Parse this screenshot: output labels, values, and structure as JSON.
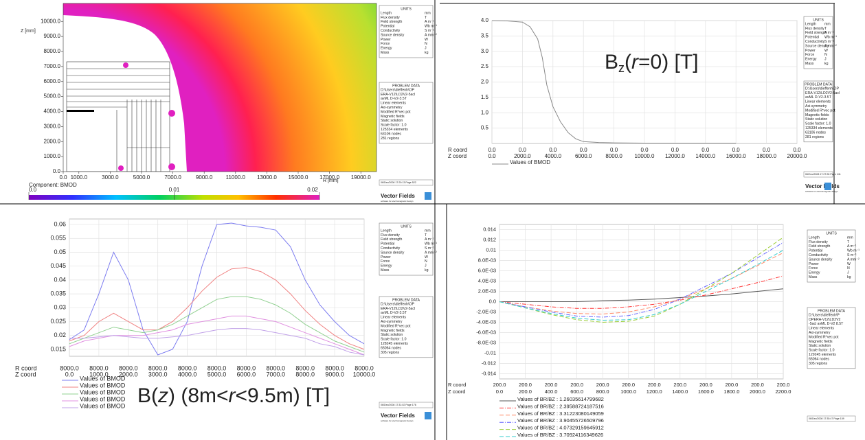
{
  "sidebar": {
    "units_title": "UNITS",
    "units": [
      [
        "Length",
        "mm"
      ],
      [
        "Flux density",
        "T"
      ],
      [
        "Field strength",
        "A m⁻¹"
      ],
      [
        "Potential",
        "Wb m⁻¹"
      ],
      [
        "Conductivity",
        "S m⁻¹"
      ],
      [
        "Source density",
        "A mm⁻²"
      ],
      [
        "Power",
        "W"
      ],
      [
        "Force",
        "N"
      ],
      [
        "Energy",
        "J"
      ],
      [
        "Mass",
        "kg"
      ]
    ],
    "problem_title": "PROBLEM DATA",
    "logo": "Vector Fields",
    "logo_tagline": "software for electromagnetic design"
  },
  "chart_data": [
    {
      "type": "contour",
      "x_label": "R [mm]",
      "y_label": "Z [mm]",
      "xlim": [
        0,
        20000
      ],
      "ylim": [
        0,
        11200
      ],
      "xticks": [
        {
          "value": 0,
          "label": "0.0"
        },
        {
          "value": 1000,
          "label": "1000.0"
        },
        {
          "value": 3000,
          "label": "3000.0"
        },
        {
          "value": 5000,
          "label": "5000.0"
        },
        {
          "value": 7000,
          "label": "7000.0"
        },
        {
          "value": 9000,
          "label": "9000.0"
        },
        {
          "value": 11000,
          "label": "11000.0"
        },
        {
          "value": 13000,
          "label": "13000.0"
        },
        {
          "value": 15000,
          "label": "15000.0"
        },
        {
          "value": 17000,
          "label": "17000.0"
        },
        {
          "value": 19000,
          "label": "19000.0"
        }
      ],
      "yticks": [
        {
          "value": 0,
          "label": "0.0"
        },
        {
          "value": 1000,
          "label": "1000.0"
        },
        {
          "value": 2000,
          "label": "2000.0"
        },
        {
          "value": 3000,
          "label": "3000.0"
        },
        {
          "value": 4000,
          "label": "4000.0"
        },
        {
          "value": 5000,
          "label": "5000.0"
        },
        {
          "value": 6000,
          "label": "6000.0"
        },
        {
          "value": 7000,
          "label": "7000.0"
        },
        {
          "value": 8000,
          "label": "8000.0"
        },
        {
          "value": 9000,
          "label": "9000.0"
        },
        {
          "value": 10000,
          "label": "10000.0"
        }
      ],
      "colorbar": {
        "label": "Component: BMOD",
        "lim": [
          0,
          0.02
        ],
        "ticks": [
          {
            "value": 0,
            "label": "0.0"
          },
          0.01,
          0.02
        ]
      },
      "problem_data": [
        "D:\\Users\\dieffenh\\OP",
        "ERA-V12\\LD2V2-5acl",
        "avML D-V2-3.5T",
        "Linear elements",
        "Axi-symmetry",
        "Modified R*vec pot",
        "Magnetic fields",
        "Static solution",
        "Scale factor: 1.0",
        "125334 elements",
        "63106 nodes",
        "281 regions"
      ],
      "footer": "06/Dec/2008 17:20:13 Page 522"
    },
    {
      "type": "line",
      "annotation": [
        "B",
        "z",
        "(",
        "r",
        "=0) [T]"
      ],
      "x_row_labels": [
        "R coord",
        "Z coord"
      ],
      "r_coord": "0.0",
      "x": [
        0,
        1000,
        2000,
        2500,
        3000,
        3300,
        3600,
        4000,
        4500,
        5000,
        5500,
        6000,
        7000,
        8000,
        10000,
        12000,
        14000,
        16000
      ],
      "xlim": [
        0,
        20000
      ],
      "xticks": [
        {
          "value": 0,
          "label": "0.0"
        },
        {
          "value": 2000,
          "label": "2000.0"
        },
        {
          "value": 4000,
          "label": "4000.0"
        },
        {
          "value": 6000,
          "label": "6000.0"
        },
        {
          "value": 8000,
          "label": "8000.0"
        },
        {
          "value": 10000,
          "label": "10000.0"
        },
        {
          "value": 12000,
          "label": "12000.0"
        },
        {
          "value": 14000,
          "label": "14000.0"
        },
        {
          "value": 16000,
          "label": "16000.0"
        },
        {
          "value": 18000,
          "label": "18000.0"
        },
        {
          "value": 20000,
          "label": "20000.0"
        }
      ],
      "ylim": [
        0,
        4
      ],
      "yticks": [
        0.5,
        {
          "value": 1,
          "label": "1.0"
        },
        1.5,
        {
          "value": 2,
          "label": "2.0"
        },
        2.5,
        {
          "value": 3,
          "label": "3.0"
        },
        3.5,
        {
          "value": 4,
          "label": "4.0"
        }
      ],
      "grid": true,
      "series": [
        {
          "name": "Values of BMOD",
          "color": "#888888",
          "style": "solid",
          "values": [
            4.0,
            3.99,
            3.95,
            3.8,
            3.4,
            2.8,
            1.9,
            1.2,
            0.7,
            0.35,
            0.15,
            0.06,
            0.03,
            0.02,
            0.01,
            0.01,
            0.01,
            0.01
          ]
        }
      ],
      "problem_data": [
        "D:\\Users\\dieffenh\\OP",
        "ERA-V12\\LD2V2-5acl",
        "avML D-V2-3.5T",
        "Linear elements",
        "Axi-symmetry",
        "Modified R*vec pot",
        "Magnetic fields",
        "Static solution",
        "Scale factor: 1.0",
        "125334 elements",
        "63106 nodes",
        "281 regions"
      ],
      "footer": "06/Dec/2008 17:27:28 Page 141"
    },
    {
      "type": "line",
      "annotation": [
        "B(",
        "z",
        ") (8m<",
        "r",
        "<9.5m) [T]"
      ],
      "x_row_labels": [
        "R coord",
        "Z coord"
      ],
      "r_coord": "8000.0",
      "x": [
        0,
        500,
        1000,
        1500,
        2000,
        2500,
        3000,
        3500,
        4000,
        4500,
        5000,
        5500,
        6000,
        6500,
        7000,
        7500,
        8000,
        8500,
        9000,
        9500,
        10000
      ],
      "xlim": [
        0,
        10000
      ],
      "xticks": [
        {
          "value": 0,
          "label": "0.0"
        },
        {
          "value": 1000,
          "label": "1000.0"
        },
        {
          "value": 2000,
          "label": "2000.0"
        },
        {
          "value": 3000,
          "label": "3000.0"
        },
        {
          "value": 4000,
          "label": "4000.0"
        },
        {
          "value": 5000,
          "label": "5000.0"
        },
        {
          "value": 6000,
          "label": "6000.0"
        },
        {
          "value": 7000,
          "label": "7000.0"
        },
        {
          "value": 8000,
          "label": "8000.0"
        },
        {
          "value": 9000,
          "label": "9000.0"
        },
        {
          "value": 10000,
          "label": "10000.0"
        }
      ],
      "ylim": [
        0.0125,
        0.062
      ],
      "yticks": [
        0.015,
        0.02,
        0.025,
        0.03,
        0.035,
        0.04,
        0.045,
        0.05,
        0.055,
        0.06
      ],
      "grid": true,
      "series": [
        {
          "name": "Values of BMOD",
          "color": "#7c7cf0",
          "style": "solid",
          "values": [
            0.0185,
            0.022,
            0.035,
            0.05,
            0.04,
            0.022,
            0.013,
            0.015,
            0.025,
            0.045,
            0.06,
            0.0605,
            0.0595,
            0.059,
            0.058,
            0.052,
            0.04,
            0.031,
            0.025,
            0.02,
            0.017
          ]
        },
        {
          "name": "Values of BMOD",
          "color": "#f08080",
          "style": "solid",
          "values": [
            0.018,
            0.02,
            0.025,
            0.028,
            0.025,
            0.022,
            0.022,
            0.025,
            0.03,
            0.036,
            0.041,
            0.044,
            0.0445,
            0.043,
            0.04,
            0.035,
            0.029,
            0.024,
            0.02,
            0.017,
            0.015
          ]
        },
        {
          "name": "Values of BMOD",
          "color": "#90d090",
          "style": "solid",
          "values": [
            0.017,
            0.019,
            0.021,
            0.023,
            0.022,
            0.021,
            0.022,
            0.024,
            0.027,
            0.03,
            0.033,
            0.034,
            0.034,
            0.033,
            0.031,
            0.028,
            0.024,
            0.021,
            0.018,
            0.016,
            0.014
          ]
        },
        {
          "name": "Values of BMOD",
          "color": "#e090e0",
          "style": "solid",
          "values": [
            0.016,
            0.018,
            0.019,
            0.02,
            0.02,
            0.02,
            0.021,
            0.022,
            0.024,
            0.025,
            0.026,
            0.027,
            0.027,
            0.026,
            0.025,
            0.023,
            0.021,
            0.019,
            0.017,
            0.015,
            0.013
          ]
        },
        {
          "name": "Values of BMOD",
          "color": "#c0a0e8",
          "style": "solid",
          "values": [
            0.019,
            0.019,
            0.0195,
            0.02,
            0.0195,
            0.019,
            0.019,
            0.0195,
            0.02,
            0.021,
            0.022,
            0.0225,
            0.0225,
            0.022,
            0.021,
            0.02,
            0.019,
            0.017,
            0.016,
            0.014,
            0.013
          ]
        }
      ],
      "problem_data": [
        "D:\\Users\\dieffenh\\OP",
        "ERA-V12\\LD2V2-5acl",
        "avML D-V2-3.5T",
        "Linear elements",
        "Axi-symmetry",
        "Modified R*vec pot",
        "Magnetic fields",
        "Static solution",
        "Scale factor: 1.0",
        "128245 elements",
        "65064 nodes",
        "305 regions"
      ],
      "footer": "06/Dec/2008 17:31:02 Page 176"
    },
    {
      "type": "line",
      "x_row_labels": [
        "R coord",
        "Z coord"
      ],
      "r_coord": "200.0",
      "x": [
        0,
        200,
        400,
        600,
        800,
        1000,
        1200,
        1400,
        1600,
        1800,
        2000,
        2200
      ],
      "xlim": [
        0,
        2200
      ],
      "xticks": [
        {
          "value": 0,
          "label": "0.0"
        },
        {
          "value": 200,
          "label": "200.0"
        },
        {
          "value": 400,
          "label": "400.0"
        },
        {
          "value": 600,
          "label": "600.0"
        },
        {
          "value": 800,
          "label": "800.0"
        },
        {
          "value": 1000,
          "label": "1000.0"
        },
        {
          "value": 1200,
          "label": "1200.0"
        },
        {
          "value": 1400,
          "label": "1400.0"
        },
        {
          "value": 1600,
          "label": "1600.0"
        },
        {
          "value": 1800,
          "label": "1800.0"
        },
        {
          "value": 2000,
          "label": "2000.0"
        },
        {
          "value": 2200,
          "label": "2200.0"
        }
      ],
      "ylim": [
        -0.015,
        0.015
      ],
      "yticks": [
        -0.014,
        -0.012,
        -0.01,
        {
          "value": -0.008,
          "label": "-8.0E-03"
        },
        {
          "value": -0.006,
          "label": "-6.0E-03"
        },
        {
          "value": -0.004,
          "label": "-4.0E-03"
        },
        {
          "value": -0.002,
          "label": "-2.0E-03"
        },
        {
          "value": 0,
          "label": "0.0"
        },
        {
          "value": 0.002,
          "label": "2.0E-03"
        },
        {
          "value": 0.004,
          "label": "4.0E-03"
        },
        {
          "value": 0.006,
          "label": "6.0E-03"
        },
        {
          "value": 0.008,
          "label": "8.0E-03"
        },
        0.01,
        0.012,
        0.014
      ],
      "grid": true,
      "series": [
        {
          "name": "Values of BR/BZ : 1.26035614799682",
          "color": "#555555",
          "style": "solid",
          "values": [
            0,
            0,
            0,
            0,
            0.0002,
            0.0003,
            0.0005,
            0.0008,
            0.0011,
            0.0015,
            0.002,
            0.0025
          ]
        },
        {
          "name": "Values of BR/BZ : 2.39588724187516",
          "color": "#ff3333",
          "style": "dash-dot",
          "values": [
            0,
            -0.0005,
            -0.001,
            -0.0013,
            -0.0013,
            -0.001,
            -0.0005,
            0.0003,
            0.0013,
            0.0025,
            0.0037,
            0.005
          ]
        },
        {
          "name": "Values of BR/BZ : 3.31223080149059",
          "color": "#ff8866",
          "style": "dash",
          "values": [
            0,
            -0.001,
            -0.0018,
            -0.0023,
            -0.0024,
            -0.002,
            -0.001,
            0.0005,
            0.0025,
            0.0045,
            0.007,
            0.0095
          ]
        },
        {
          "name": "Values of BR/BZ : 3.90455726509796",
          "color": "#6666ff",
          "style": "dash-dot",
          "values": [
            0,
            -0.001,
            -0.002,
            -0.0028,
            -0.003,
            -0.0027,
            -0.0015,
            0.0005,
            0.003,
            0.0055,
            0.0085,
            0.0115
          ]
        },
        {
          "name": "Values of BR/BZ : 4.07329159645912",
          "color": "#99cc33",
          "style": "dash",
          "values": [
            0,
            -0.0012,
            -0.0025,
            -0.0035,
            -0.004,
            -0.0038,
            -0.0028,
            -0.0005,
            0.0025,
            0.0055,
            0.009,
            0.0125
          ]
        },
        {
          "name": "Values of BR/BZ : 3.70924116349626",
          "color": "#33cccc",
          "style": "dash",
          "values": [
            0,
            -0.0012,
            -0.0023,
            -0.0032,
            -0.0036,
            -0.0035,
            -0.0025,
            -0.0005,
            0.002,
            0.0045,
            0.0072,
            0.01
          ]
        }
      ],
      "problem_data": [
        "D:\\Users\\dieffenh\\P",
        "OPERA-V12\\LD2V2",
        "-5acl avML D-V2 8.5T",
        "Linear elements",
        "Axi-symmetry",
        "Modified R*vec pot",
        "Magnetic fields",
        "Static solution",
        "Scale factor: 1.0",
        "129245 elements",
        "65064 nodes",
        "305 regions"
      ],
      "footer": "06/Dec/2008 17:35:47 Page 159"
    }
  ]
}
